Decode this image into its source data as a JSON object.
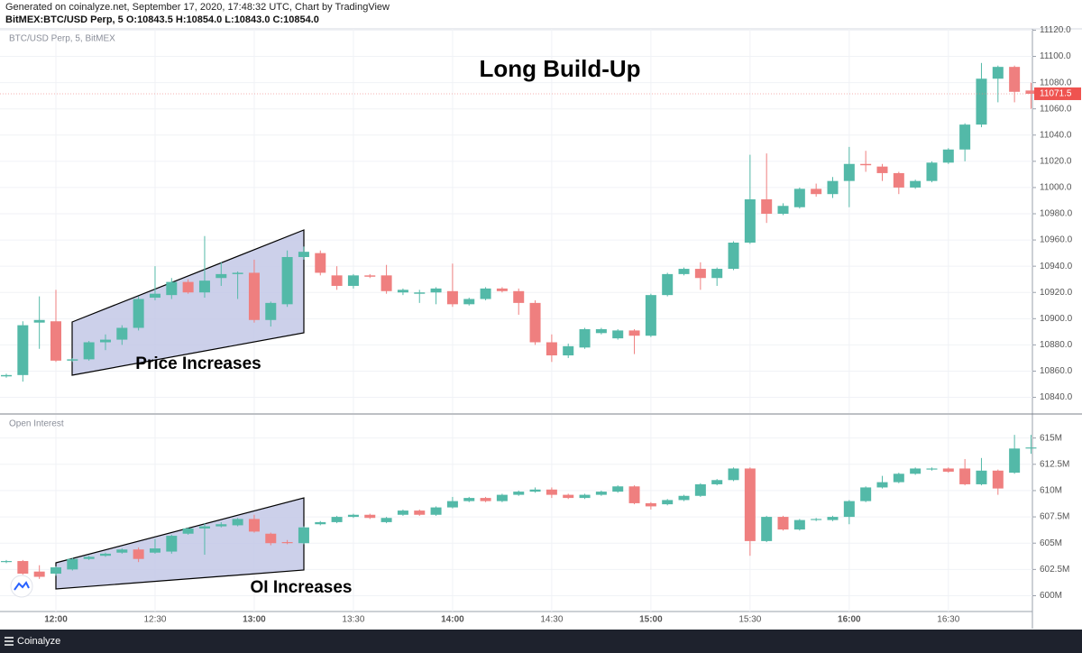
{
  "header": {
    "line1": "Generated on coinalyze.net, September 17, 2020, 17:48:32 UTC, Chart by TradingView",
    "line2": "BitMEX:BTC/USD Perp, 5 O:10843.5 H:10854.0 L:10843.0 C:10854.0"
  },
  "footer": "Coinalyze",
  "chart_data": [
    {
      "type": "candlestick",
      "title": "Long Build-Up",
      "subtitle": "BTC/USD Perp, 5, BitMEX",
      "annotation": "Price Increases",
      "up_color": "#53b9a8",
      "down_color": "#ef7f7f",
      "grid": true,
      "ylim": [
        10828,
        11121
      ],
      "yticks": [
        {
          "value": 10840,
          "label": "10840.0"
        },
        {
          "value": 10860,
          "label": "10860.0"
        },
        {
          "value": 10880,
          "label": "10880.0"
        },
        {
          "value": 10900,
          "label": "10900.0"
        },
        {
          "value": 10920,
          "label": "10920.0"
        },
        {
          "value": 10940,
          "label": "10940.0"
        },
        {
          "value": 10960,
          "label": "10960.0"
        },
        {
          "value": 10980,
          "label": "10980.0"
        },
        {
          "value": 11000,
          "label": "11000.0"
        },
        {
          "value": 11020,
          "label": "11020.0"
        },
        {
          "value": 11040,
          "label": "11040.0"
        },
        {
          "value": 11060,
          "label": "11060.0"
        },
        {
          "value": 11080,
          "label": "11080.0"
        },
        {
          "value": 11100,
          "label": "11100.0"
        },
        {
          "value": 11120,
          "label": "11120.0"
        }
      ],
      "open": [
        10856,
        10857,
        10897,
        10898,
        10868,
        10869,
        10882,
        10884,
        10893,
        10916,
        10918,
        10928,
        10920,
        10931,
        10934,
        10935,
        10899,
        10911,
        10947,
        10950,
        10933,
        10925,
        10933,
        10933,
        10920,
        10919,
        10920,
        10921,
        10911,
        10915,
        10923,
        10921,
        10912,
        10882,
        10872,
        10878,
        10889,
        10885,
        10891,
        10887,
        10918,
        10934,
        10938,
        10931,
        10938,
        10958,
        10991,
        10980,
        10985,
        10999,
        10995,
        11005,
        11018,
        11016,
        11011,
        11000,
        11005,
        11019,
        11029,
        11048,
        11083,
        11092,
        11074
      ],
      "high": [
        10858,
        10898,
        10917,
        10922,
        10870,
        10883,
        10888,
        10895,
        10917,
        10940,
        10931,
        10930,
        10963,
        10943,
        10936,
        10945,
        10913,
        10952,
        10955,
        10952,
        10940,
        10934,
        10934,
        10941,
        10923,
        10922,
        10924,
        10942,
        10916,
        10924,
        10924,
        10923,
        10914,
        10888,
        10881,
        10893,
        10893,
        10892,
        10892,
        10919,
        10935,
        10939,
        10943,
        10939,
        10959,
        11025,
        11026,
        10988,
        11000,
        11003,
        11008,
        11031,
        11028,
        11018,
        11012,
        11006,
        11020,
        11030,
        11049,
        11095,
        11093,
        11093,
        11080
      ],
      "low": [
        10855,
        10852,
        10877,
        10867,
        10867,
        10868,
        10876,
        10880,
        10891,
        10914,
        10915,
        10919,
        10916,
        10925,
        10915,
        10897,
        10894,
        10909,
        10945,
        10933,
        10922,
        10923,
        10931,
        10919,
        10918,
        10912,
        10911,
        10909,
        10910,
        10914,
        10920,
        10903,
        10880,
        10867,
        10870,
        10877,
        10888,
        10884,
        10873,
        10886,
        10917,
        10933,
        10922,
        10925,
        10937,
        10957,
        10973,
        10979,
        10984,
        10993,
        10992,
        10985,
        11012,
        11005,
        10995,
        10999,
        11004,
        11018,
        11020,
        11046,
        11065,
        11065,
        11060
      ],
      "close": [
        10857,
        10895,
        10899,
        10868,
        10869,
        10882,
        10884,
        10893,
        10915,
        10919,
        10928,
        10920,
        10929,
        10934,
        10935,
        10899,
        10912,
        10947,
        10951,
        10935,
        10925,
        10933,
        10932,
        10921,
        10922,
        10920,
        10923,
        10911,
        10915,
        10923,
        10921,
        10912,
        10882,
        10872,
        10879,
        10892,
        10892,
        10891,
        10887,
        10918,
        10934,
        10938,
        10931,
        10938,
        10958,
        10991,
        10980,
        10986,
        10999,
        10995,
        11005,
        11018,
        11017,
        11011,
        11000,
        11005,
        11019,
        11029,
        11048,
        11083,
        11092,
        11073,
        11071.5
      ]
    },
    {
      "type": "candlestick",
      "subtitle": "Open Interest",
      "annotation": "OI Increases",
      "up_color": "#53b9a8",
      "down_color": "#ef7f7f",
      "grid": true,
      "categories": [
        null,
        null,
        null,
        "12:00",
        null,
        null,
        null,
        null,
        null,
        "12:30",
        null,
        null,
        null,
        null,
        null,
        "13:00",
        null,
        null,
        null,
        null,
        null,
        "13:30",
        null,
        null,
        null,
        null,
        null,
        "14:00",
        null,
        null,
        null,
        null,
        null,
        "14:30",
        null,
        null,
        null,
        null,
        null,
        "15:00",
        null,
        null,
        null,
        null,
        null,
        "15:30",
        null,
        null,
        null,
        null,
        null,
        "16:00",
        null,
        null,
        null,
        null,
        null,
        "16:30",
        null,
        null,
        null,
        null,
        null
      ],
      "ylim": [
        598.5,
        617.2
      ],
      "yticks": [
        {
          "value": 600,
          "label": "600M"
        },
        {
          "value": 602.5,
          "label": "602.5M"
        },
        {
          "value": 605,
          "label": "605M"
        },
        {
          "value": 607.5,
          "label": "607.5M"
        },
        {
          "value": 610,
          "label": "610M"
        },
        {
          "value": 612.5,
          "label": "612.5M"
        },
        {
          "value": 615,
          "label": "615M"
        }
      ],
      "open": [
        603.2,
        603.3,
        602.3,
        602.1,
        602.5,
        603.5,
        603.8,
        604.1,
        604.4,
        604.1,
        604.2,
        605.9,
        606.4,
        606.6,
        606.7,
        607.3,
        605.9,
        605.1,
        605.0,
        606.8,
        607.0,
        607.5,
        607.7,
        607.0,
        607.7,
        608.1,
        607.7,
        608.4,
        609.0,
        609.3,
        609.0,
        609.6,
        609.9,
        610.1,
        609.6,
        609.3,
        609.6,
        609.9,
        610.4,
        608.8,
        608.7,
        609.1,
        609.5,
        610.6,
        611.0,
        612.1,
        605.2,
        607.5,
        606.3,
        607.2,
        607.2,
        607.5,
        609.0,
        610.3,
        610.8,
        611.6,
        612.0,
        612.1,
        612.1,
        610.6,
        611.9,
        611.7,
        614.0
      ],
      "high": [
        603.4,
        603.4,
        602.9,
        602.8,
        603.6,
        603.8,
        604.1,
        604.5,
        604.6,
        605.4,
        605.8,
        606.5,
        606.9,
        607.0,
        607.4,
        607.7,
        606.0,
        605.3,
        606.6,
        607.1,
        607.6,
        607.8,
        607.8,
        607.5,
        608.2,
        608.2,
        608.5,
        609.4,
        609.4,
        609.4,
        609.7,
        610.0,
        610.3,
        610.3,
        609.7,
        609.7,
        610.0,
        610.5,
        610.5,
        608.9,
        609.2,
        609.6,
        610.7,
        611.1,
        612.2,
        612.2,
        607.6,
        607.6,
        607.3,
        607.4,
        607.6,
        609.1,
        610.4,
        611.4,
        611.7,
        612.2,
        612.2,
        612.2,
        613.0,
        613.1,
        612.0,
        615.3,
        615.3
      ],
      "low": [
        603.1,
        602.0,
        601.6,
        601.9,
        602.4,
        603.4,
        603.7,
        604.0,
        603.2,
        604.0,
        604.0,
        605.8,
        603.9,
        606.5,
        606.6,
        606.0,
        604.8,
        604.9,
        604.9,
        606.7,
        606.9,
        607.4,
        607.3,
        606.9,
        607.6,
        607.6,
        607.6,
        608.3,
        608.9,
        608.9,
        608.9,
        609.5,
        609.8,
        609.3,
        609.2,
        609.2,
        609.5,
        609.8,
        608.7,
        608.2,
        608.6,
        609.0,
        609.4,
        610.5,
        610.9,
        603.8,
        605.1,
        606.2,
        606.2,
        607.1,
        607.1,
        606.8,
        608.9,
        610.2,
        610.7,
        611.5,
        611.9,
        611.7,
        610.5,
        610.5,
        609.6,
        611.6,
        613.5
      ],
      "close": [
        603.3,
        602.1,
        601.8,
        602.7,
        603.5,
        603.7,
        604.0,
        604.4,
        603.5,
        604.5,
        605.7,
        606.4,
        606.6,
        606.8,
        607.3,
        606.1,
        605.0,
        605.0,
        606.5,
        607.0,
        607.5,
        607.7,
        607.4,
        607.4,
        608.1,
        607.7,
        608.4,
        609.0,
        609.3,
        609.0,
        609.6,
        609.9,
        610.1,
        609.6,
        609.3,
        609.6,
        609.9,
        610.4,
        608.8,
        608.5,
        609.1,
        609.5,
        610.6,
        611.0,
        612.1,
        605.2,
        607.5,
        606.3,
        607.2,
        607.3,
        607.5,
        609.0,
        610.3,
        610.8,
        611.6,
        612.1,
        612.1,
        611.8,
        610.6,
        611.9,
        610.2,
        614.0,
        614.1
      ]
    }
  ]
}
